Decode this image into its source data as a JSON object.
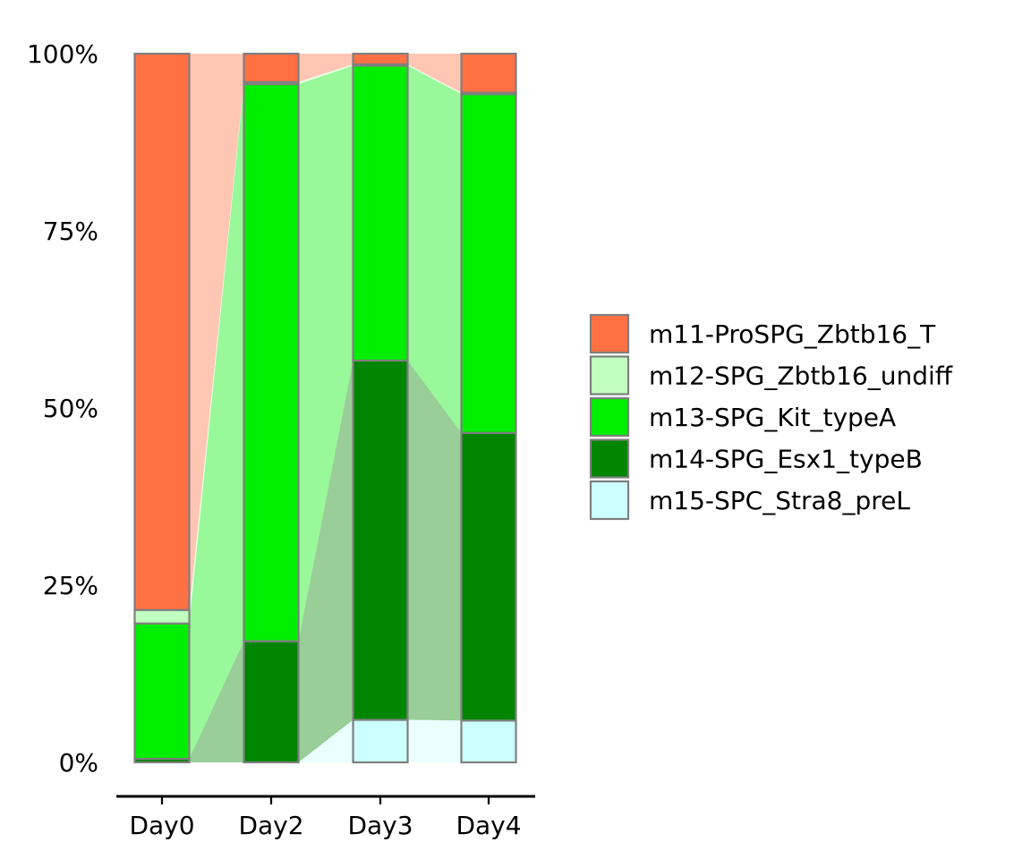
{
  "chart_data": {
    "type": "bar",
    "subtype": "stacked-percent-with-alluvial-flows",
    "categories": [
      "Day0",
      "Day2",
      "Day3",
      "Day4"
    ],
    "series": [
      {
        "name": "m15-SPC_Stra8_preL",
        "color": "#CCFFFF",
        "values": [
          0.0,
          0.0,
          6.0,
          5.9
        ]
      },
      {
        "name": "m14-SPG_Esx1_typeB",
        "color": "#008500",
        "values": [
          0.5,
          17.1,
          50.7,
          40.6
        ]
      },
      {
        "name": "m13-SPG_Kit_typeA",
        "color": "#00EE00",
        "values": [
          19.1,
          78.6,
          41.6,
          47.8
        ]
      },
      {
        "name": "m12-SPG_Zbtb16_undiff",
        "color": "#C1FFC1",
        "values": [
          1.9,
          0.3,
          0.2,
          0.2
        ]
      },
      {
        "name": "m11-ProSPG_Zbtb16_T",
        "color": "#FF7043",
        "values": [
          78.5,
          4.0,
          1.5,
          5.5
        ]
      }
    ],
    "legend_order": [
      "m11-ProSPG_Zbtb16_T",
      "m12-SPG_Zbtb16_undiff",
      "m13-SPG_Kit_typeA",
      "m14-SPG_Esx1_typeB",
      "m15-SPC_Stra8_preL"
    ],
    "y_ticks": [
      {
        "value": 0,
        "label": "0%"
      },
      {
        "value": 25,
        "label": "25%"
      },
      {
        "value": 50,
        "label": "50%"
      },
      {
        "value": 75,
        "label": "75%"
      },
      {
        "value": 100,
        "label": "100%"
      }
    ],
    "ylim": [
      0,
      100
    ],
    "title": "",
    "xlabel": "",
    "ylabel": "",
    "grid": false,
    "legend_position": "right",
    "bar_outline_color": "#7F7F7F",
    "flow_opacity": 0.4
  }
}
